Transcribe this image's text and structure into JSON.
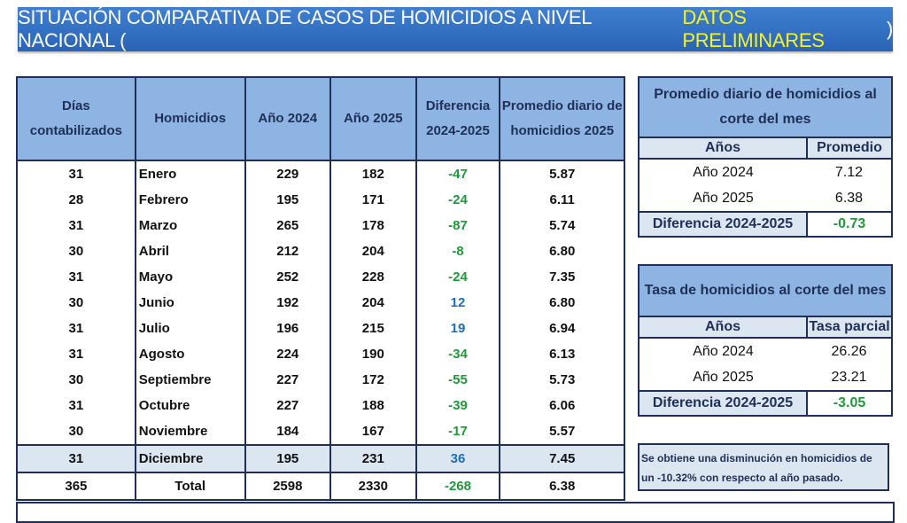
{
  "title": {
    "main": "SITUACIÓN COMPARATIVA DE CASOS DE HOMICIDIOS A NIVEL NACIONAL (",
    "highlight": "DATOS PRELIMINARES",
    "end": ")"
  },
  "main_table": {
    "headers": [
      "Días contabilizados",
      "Homicidios",
      "Año 2024",
      "Año 2025",
      "Diferencia 2024-2025",
      "Promedio diario de homicidios 2025"
    ],
    "rows": [
      [
        "31",
        "Enero",
        "229",
        "182",
        "-47",
        "5.87"
      ],
      [
        "28",
        "Febrero",
        "195",
        "171",
        "-24",
        "6.11"
      ],
      [
        "31",
        "Marzo",
        "265",
        "178",
        "-87",
        "5.74"
      ],
      [
        "30",
        "Abril",
        "212",
        "204",
        "-8",
        "6.80"
      ],
      [
        "31",
        "Mayo",
        "252",
        "228",
        "-24",
        "7.35"
      ],
      [
        "30",
        "Junio",
        "192",
        "204",
        "12",
        "6.80"
      ],
      [
        "31",
        "Julio",
        "196",
        "215",
        "19",
        "6.94"
      ],
      [
        "31",
        "Agosto",
        "224",
        "190",
        "-34",
        "6.13"
      ],
      [
        "30",
        "Septiembre",
        "227",
        "172",
        "-55",
        "5.73"
      ],
      [
        "31",
        "Octubre",
        "227",
        "188",
        "-39",
        "6.06"
      ],
      [
        "30",
        "Noviembre",
        "184",
        "167",
        "-17",
        "5.57"
      ],
      [
        "31",
        "Diciembre",
        "195",
        "231",
        "36",
        "7.45"
      ]
    ],
    "total": [
      "365",
      "Total",
      "2598",
      "2330",
      "-268",
      "6.38"
    ]
  },
  "promedio": {
    "title": "Promedio diario de homicidios al corte del mes",
    "col1": "Años",
    "col2": "Promedio",
    "rows": [
      [
        "Año 2024",
        "7.12"
      ],
      [
        "Año 2025",
        "6.38"
      ]
    ],
    "diff_label": "Diferencia 2024-2025",
    "diff": "-0.73"
  },
  "tasa": {
    "title": "Tasa de homicidios al corte del mes",
    "col1": "Años",
    "col2": "Tasa parcial",
    "rows": [
      [
        "Año 2024",
        "26.26"
      ],
      [
        "Año 2025",
        "23.21"
      ]
    ],
    "diff_label": "Diferencia 2024-2025",
    "diff": "-3.05"
  },
  "note": "Se obtiene una disminución en homicidios de un -10.32% con respecto al año pasado.",
  "colors": {
    "header": "#8db4e2",
    "title_bg": "#2a64b6",
    "negative": "#1e9a3a",
    "positive": "#1f6fb5",
    "highlight": "#f3f32a"
  }
}
